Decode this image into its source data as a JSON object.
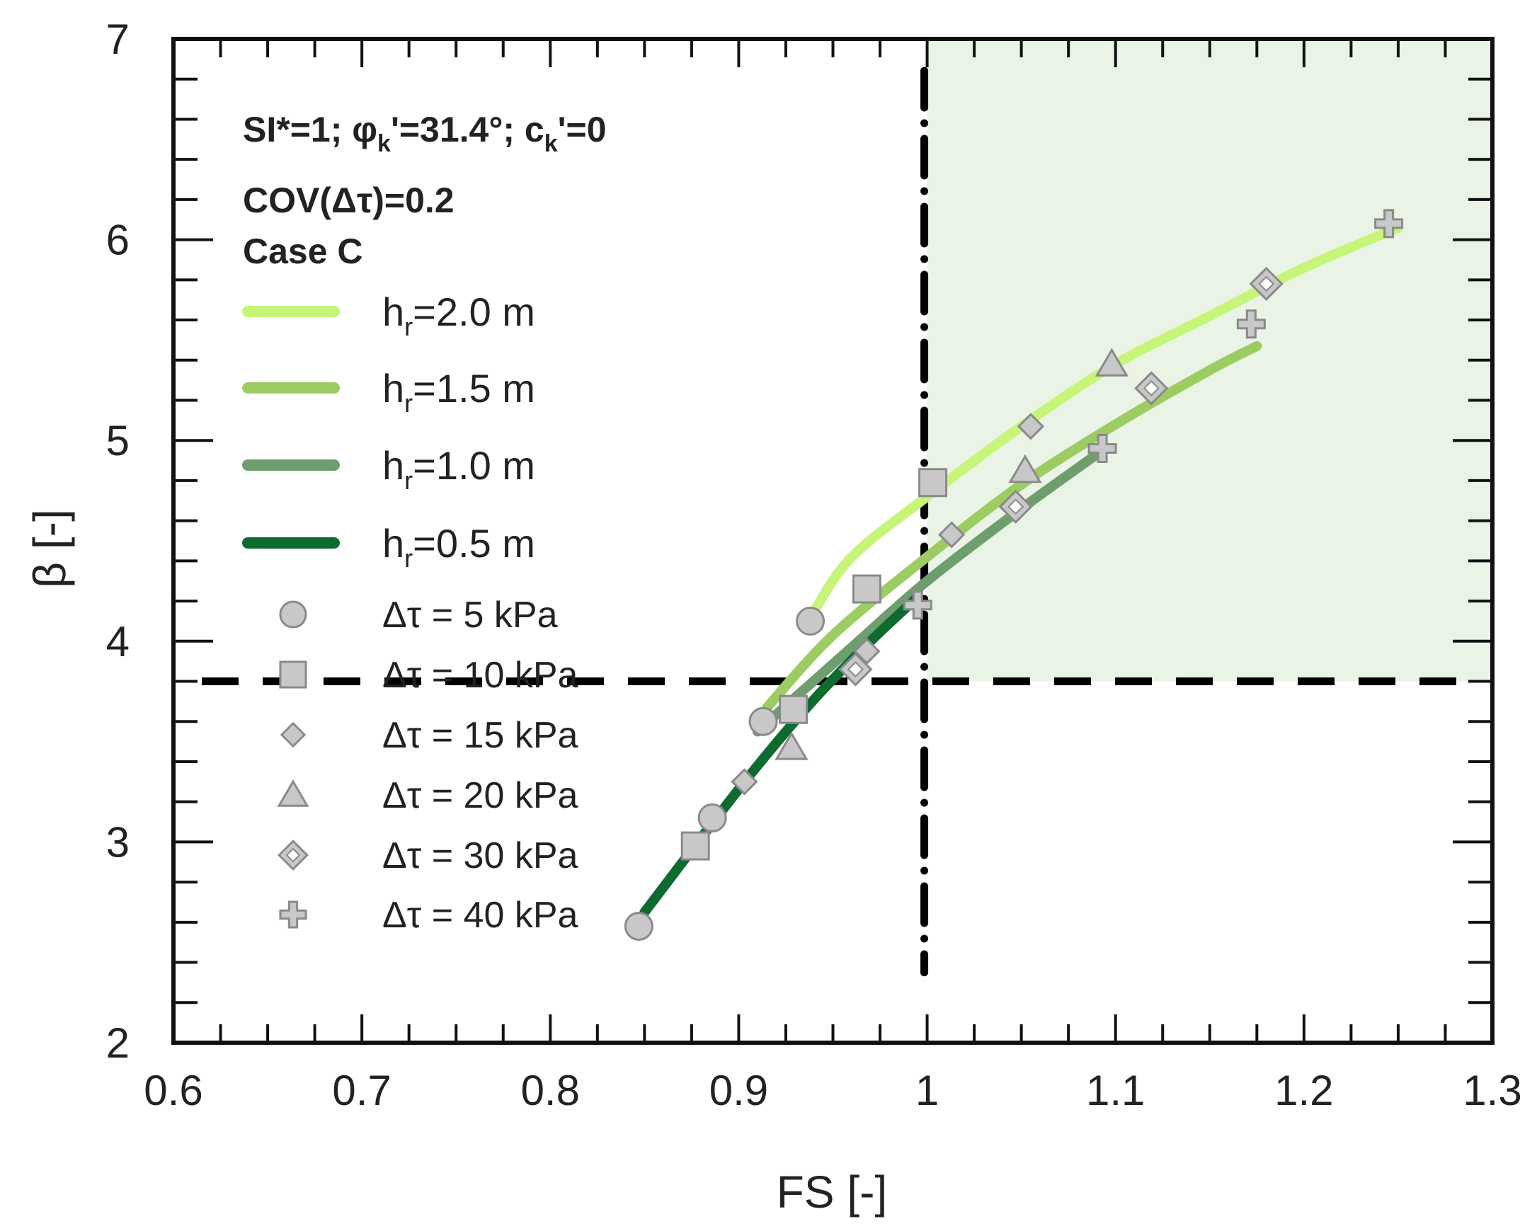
{
  "chart_data": {
    "type": "line",
    "xlabel": "FS [-]",
    "ylabel": "β [-]",
    "xlim": [
      0.6,
      1.3
    ],
    "ylim": [
      2,
      7
    ],
    "xticks": [
      0.6,
      0.7,
      0.8,
      0.9,
      1,
      1.1,
      1.2,
      1.3
    ],
    "xtick_labels": [
      "0.6",
      "0.7",
      "0.8",
      "0.9",
      "1",
      "1.1",
      "1.2",
      "1.3"
    ],
    "yticks": [
      2,
      3,
      4,
      5,
      6,
      7
    ],
    "ytick_labels": [
      "2",
      "3",
      "4",
      "5",
      "6",
      "7"
    ],
    "annotation": {
      "line1": {
        "a": "SI*=1; ",
        "phi": "φ",
        "phi_sub": "k",
        "b": "'=31.4°; c",
        "c_sub": "k",
        "c": "'=0"
      },
      "line2": "COV(Δτ)=0.2",
      "line3": "Case C"
    },
    "thresholds": {
      "fs": 1.0,
      "beta": 3.8
    },
    "safe_region": {
      "fs_min": 1.0,
      "beta_min": 3.8,
      "color": "#eaf4e6"
    },
    "series": [
      {
        "name": "hr=2.0 m",
        "label_main": "h",
        "label_sub": "r",
        "label_rest": "=2.0 m",
        "color": "#c6f57a",
        "x": [
          0.94,
          0.96,
          1.0,
          1.05,
          1.1,
          1.15,
          1.2,
          1.25
        ],
        "y": [
          4.15,
          4.42,
          4.72,
          5.07,
          5.38,
          5.62,
          5.86,
          6.06
        ]
      },
      {
        "name": "hr=1.5 m",
        "label_main": "h",
        "label_sub": "r",
        "label_rest": "=1.5 m",
        "color": "#9ccc62",
        "x": [
          0.915,
          0.95,
          1.0,
          1.05,
          1.1,
          1.15,
          1.175
        ],
        "y": [
          3.67,
          4.03,
          4.42,
          4.78,
          5.08,
          5.35,
          5.47
        ]
      },
      {
        "name": "hr=1.0 m",
        "label_main": "h",
        "label_sub": "r",
        "label_rest": "=1.0 m",
        "color": "#6e9e6e",
        "x": [
          0.91,
          0.93,
          0.96,
          1.0,
          1.05,
          1.093
        ],
        "y": [
          3.55,
          3.72,
          3.97,
          4.3,
          4.66,
          4.95
        ]
      },
      {
        "name": "hr=0.5 m",
        "label_main": "h",
        "label_sub": "r",
        "label_rest": "=0.5 m",
        "color": "#0e6b2f",
        "x": [
          0.85,
          0.88,
          0.91,
          0.94,
          0.97,
          0.995
        ],
        "y": [
          2.65,
          3.02,
          3.38,
          3.71,
          4.0,
          4.22
        ]
      }
    ],
    "markers": [
      {
        "name": "Δτ = 5 kPa",
        "shape": "circle",
        "points": [
          [
            0.847,
            2.58
          ],
          [
            0.886,
            3.12
          ],
          [
            0.913,
            3.6
          ],
          [
            0.938,
            4.1
          ]
        ]
      },
      {
        "name": "Δτ = 10 kPa",
        "shape": "square",
        "points": [
          [
            0.877,
            2.98
          ],
          [
            0.929,
            3.66
          ],
          [
            0.968,
            4.26
          ],
          [
            1.003,
            4.79
          ]
        ]
      },
      {
        "name": "Δτ = 15 kPa",
        "shape": "diamond",
        "points": [
          [
            0.903,
            3.3
          ],
          [
            0.968,
            3.95
          ],
          [
            1.013,
            4.53
          ],
          [
            1.055,
            5.07
          ]
        ]
      },
      {
        "name": "Δτ = 20 kPa",
        "shape": "triangle",
        "points": [
          [
            0.928,
            3.47
          ],
          [
            1.052,
            4.85
          ],
          [
            1.098,
            5.38
          ]
        ]
      },
      {
        "name": "Δτ = 30 kPa",
        "shape": "diamond-open",
        "points": [
          [
            0.962,
            3.86
          ],
          [
            1.047,
            4.67
          ],
          [
            1.119,
            5.26
          ],
          [
            1.18,
            5.78
          ]
        ]
      },
      {
        "name": "Δτ = 40 kPa",
        "shape": "plus",
        "points": [
          [
            0.995,
            4.18
          ],
          [
            1.093,
            4.96
          ],
          [
            1.172,
            5.58
          ],
          [
            1.245,
            6.08
          ]
        ]
      }
    ]
  }
}
